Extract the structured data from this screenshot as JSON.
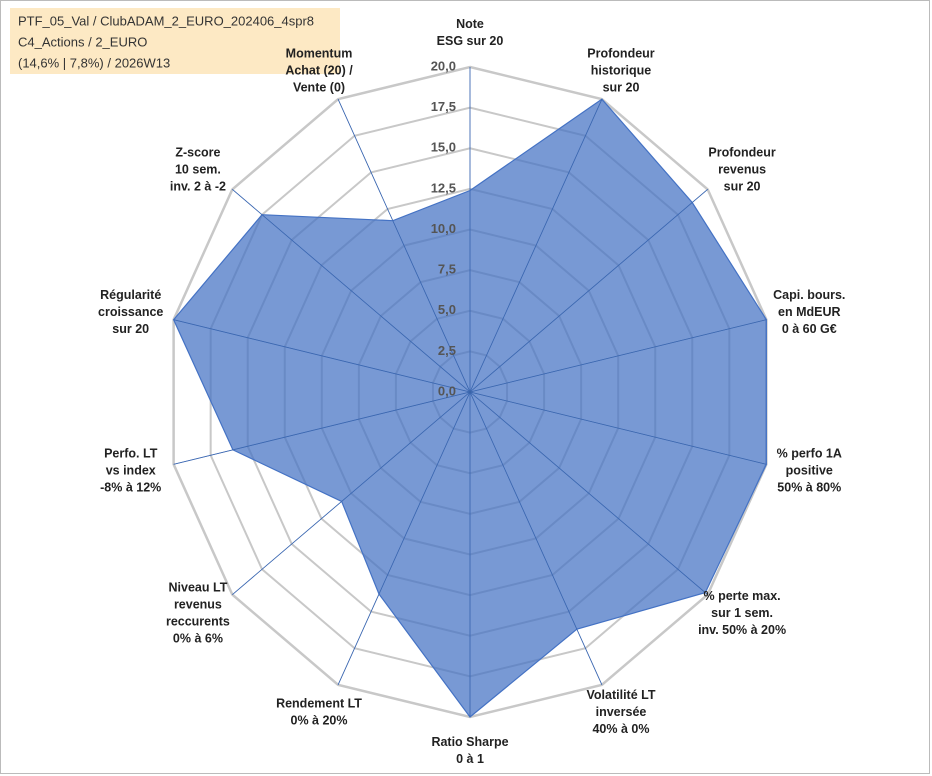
{
  "chart_data": {
    "type": "radar",
    "info": [
      "PTF_05_Val / ClubADAM_2_EURO_202406_4spr8",
      "C4_Actions / 2_EURO",
      "(14,6% | 7,8%) / 2026W13"
    ],
    "categories": [
      [
        "Note",
        "ESG sur 20"
      ],
      [
        "Profondeur",
        "historique",
        "sur 20"
      ],
      [
        "Profondeur",
        "revenus",
        "sur 20"
      ],
      [
        "Capi. bours.",
        "en MdEUR",
        "0 à 60 G€"
      ],
      [
        "% perfo 1A",
        "positive",
        "50% à 80%"
      ],
      [
        "% perte max.",
        "sur 1 sem.",
        "inv. 50% à 20%"
      ],
      [
        "Volatilité LT",
        "inversée",
        "40% à 0%"
      ],
      [
        "Ratio Sharpe",
        "0 à 1"
      ],
      [
        "Rendement LT",
        "0% à 20%"
      ],
      [
        "Niveau LT",
        "revenus",
        "reccurents",
        "0% à 6%"
      ],
      [
        "Perfo. LT",
        "vs index",
        "-8% à 12%"
      ],
      [
        "Régularité",
        "croissance",
        "sur 20"
      ],
      [
        "Z-score",
        "10 sem.",
        "inv. 2 à -2"
      ],
      [
        "Momentum",
        "Achat (20) /",
        "Vente (0)"
      ]
    ],
    "series": [
      {
        "color": "#4472c4",
        "values": [
          12.4,
          20,
          18.7,
          20,
          20,
          19.8,
          16.2,
          20,
          13.8,
          10.8,
          16,
          20,
          17.5,
          11.7
        ]
      }
    ],
    "ylim": [
      0,
      20
    ],
    "yticks": [
      {
        "value": 0,
        "label": "0,0"
      },
      {
        "value": 2.5,
        "label": "2,5"
      },
      {
        "value": 5,
        "label": "5,0"
      },
      {
        "value": 7.5,
        "label": "7,5"
      },
      {
        "value": 10,
        "label": "10,0"
      },
      {
        "value": 12.5,
        "label": "12,5"
      },
      {
        "value": 15,
        "label": "15,0"
      },
      {
        "value": 17.5,
        "label": "17,5"
      },
      {
        "value": 20,
        "label": "20,0"
      }
    ],
    "grid": true
  }
}
